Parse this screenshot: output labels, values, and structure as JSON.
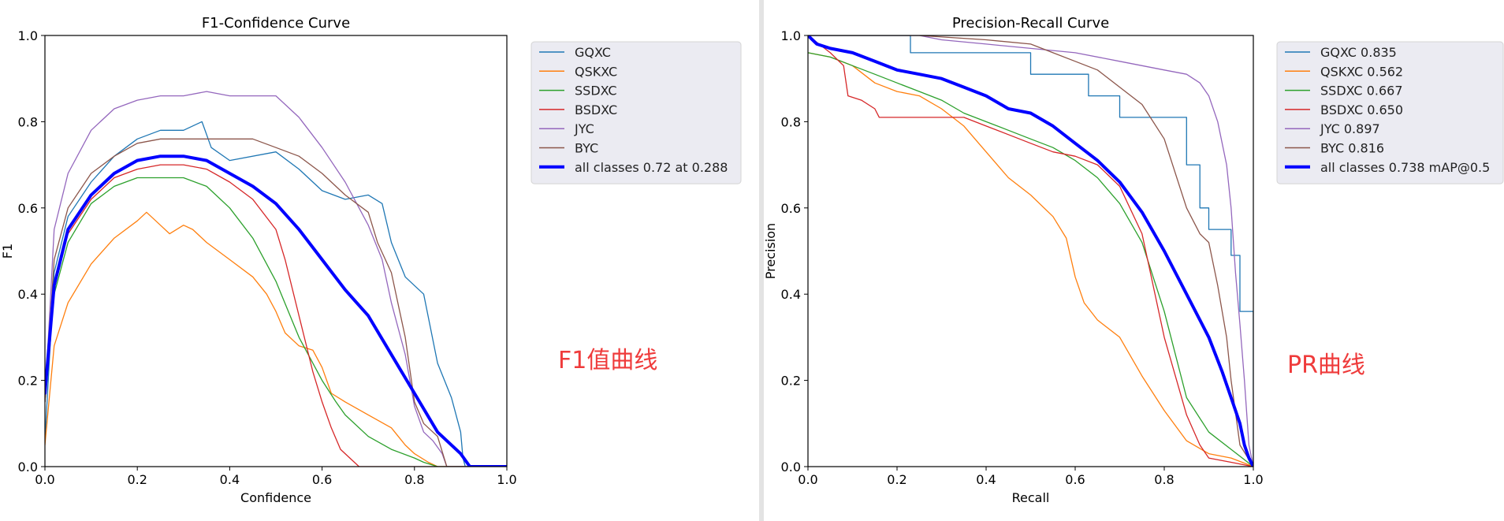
{
  "annotations": {
    "f1": "F1值曲线",
    "pr": "PR曲线"
  },
  "chart_data": [
    {
      "type": "line",
      "title": "F1-Confidence Curve",
      "xlabel": "Confidence",
      "ylabel": "F1",
      "xlim": [
        0,
        1
      ],
      "ylim": [
        0,
        1
      ],
      "xticks": [
        "0.0",
        "0.2",
        "0.4",
        "0.6",
        "0.8",
        "1.0"
      ],
      "yticks": [
        "0.0",
        "0.2",
        "0.4",
        "0.6",
        "0.8",
        "1.0"
      ],
      "grid": false,
      "legend_position": "outside-right-top",
      "series": [
        {
          "name": "GQXC",
          "color": "#1f77b4",
          "width": 1.3,
          "x": [
            0,
            0.02,
            0.05,
            0.1,
            0.15,
            0.2,
            0.25,
            0.3,
            0.34,
            0.36,
            0.4,
            0.5,
            0.55,
            0.6,
            0.65,
            0.7,
            0.73,
            0.75,
            0.78,
            0.8,
            0.82,
            0.85,
            0.88,
            0.9,
            0.905,
            0.91,
            0.95,
            1.0
          ],
          "y": [
            0.06,
            0.45,
            0.58,
            0.66,
            0.72,
            0.76,
            0.78,
            0.78,
            0.8,
            0.74,
            0.71,
            0.73,
            0.69,
            0.64,
            0.62,
            0.63,
            0.61,
            0.52,
            0.44,
            0.42,
            0.4,
            0.24,
            0.16,
            0.08,
            0.02,
            0,
            0,
            0
          ]
        },
        {
          "name": "QSKXC",
          "color": "#ff7f0e",
          "width": 1.3,
          "x": [
            0,
            0.02,
            0.05,
            0.1,
            0.15,
            0.2,
            0.22,
            0.25,
            0.27,
            0.3,
            0.32,
            0.35,
            0.4,
            0.45,
            0.48,
            0.5,
            0.52,
            0.55,
            0.58,
            0.6,
            0.62,
            0.65,
            0.7,
            0.75,
            0.78,
            0.8,
            0.83,
            0.85,
            1.0
          ],
          "y": [
            0.05,
            0.28,
            0.38,
            0.47,
            0.53,
            0.57,
            0.59,
            0.56,
            0.54,
            0.56,
            0.55,
            0.52,
            0.48,
            0.44,
            0.4,
            0.36,
            0.31,
            0.28,
            0.27,
            0.23,
            0.17,
            0.15,
            0.12,
            0.09,
            0.05,
            0.03,
            0.01,
            0,
            0
          ]
        },
        {
          "name": "SSDXC",
          "color": "#2ca02c",
          "width": 1.3,
          "x": [
            0,
            0.02,
            0.05,
            0.1,
            0.15,
            0.2,
            0.25,
            0.3,
            0.35,
            0.4,
            0.45,
            0.5,
            0.55,
            0.6,
            0.63,
            0.65,
            0.7,
            0.75,
            0.8,
            0.82,
            0.85,
            1.0
          ],
          "y": [
            0.15,
            0.4,
            0.52,
            0.61,
            0.65,
            0.67,
            0.67,
            0.67,
            0.65,
            0.6,
            0.53,
            0.43,
            0.3,
            0.2,
            0.15,
            0.12,
            0.07,
            0.04,
            0.02,
            0.01,
            0,
            0
          ]
        },
        {
          "name": "BSDXC",
          "color": "#d62728",
          "width": 1.3,
          "x": [
            0,
            0.02,
            0.05,
            0.1,
            0.15,
            0.2,
            0.25,
            0.3,
            0.35,
            0.4,
            0.45,
            0.5,
            0.52,
            0.55,
            0.58,
            0.6,
            0.62,
            0.64,
            0.66,
            0.68,
            0.7,
            1.0
          ],
          "y": [
            0.15,
            0.42,
            0.54,
            0.62,
            0.67,
            0.69,
            0.7,
            0.7,
            0.69,
            0.66,
            0.62,
            0.55,
            0.48,
            0.35,
            0.22,
            0.15,
            0.09,
            0.04,
            0.02,
            0,
            0,
            0
          ]
        },
        {
          "name": "JYC",
          "color": "#9467bd",
          "width": 1.3,
          "x": [
            0,
            0.02,
            0.05,
            0.1,
            0.15,
            0.2,
            0.25,
            0.3,
            0.35,
            0.4,
            0.45,
            0.5,
            0.55,
            0.6,
            0.65,
            0.7,
            0.73,
            0.75,
            0.78,
            0.8,
            0.82,
            0.84,
            0.86,
            0.87,
            1.0
          ],
          "y": [
            0.15,
            0.55,
            0.68,
            0.78,
            0.83,
            0.85,
            0.86,
            0.86,
            0.87,
            0.86,
            0.86,
            0.86,
            0.81,
            0.74,
            0.66,
            0.56,
            0.48,
            0.38,
            0.26,
            0.14,
            0.08,
            0.06,
            0.03,
            0,
            0
          ]
        },
        {
          "name": "BYC",
          "color": "#8c564b",
          "width": 1.3,
          "x": [
            0,
            0.02,
            0.05,
            0.1,
            0.15,
            0.2,
            0.25,
            0.3,
            0.35,
            0.4,
            0.45,
            0.5,
            0.55,
            0.6,
            0.65,
            0.7,
            0.72,
            0.75,
            0.78,
            0.8,
            0.82,
            0.85,
            0.87,
            1.0
          ],
          "y": [
            0.15,
            0.48,
            0.6,
            0.68,
            0.72,
            0.75,
            0.76,
            0.76,
            0.76,
            0.76,
            0.76,
            0.74,
            0.72,
            0.68,
            0.63,
            0.59,
            0.52,
            0.45,
            0.3,
            0.15,
            0.1,
            0.07,
            0,
            0
          ]
        },
        {
          "name": "all classes 0.72 at 0.288",
          "color": "#0000ff",
          "width": 4,
          "x": [
            0,
            0.02,
            0.05,
            0.1,
            0.15,
            0.2,
            0.25,
            0.288,
            0.3,
            0.35,
            0.4,
            0.45,
            0.5,
            0.55,
            0.6,
            0.65,
            0.7,
            0.75,
            0.8,
            0.85,
            0.9,
            0.92,
            1.0
          ],
          "y": [
            0.17,
            0.42,
            0.55,
            0.63,
            0.68,
            0.71,
            0.72,
            0.72,
            0.72,
            0.71,
            0.68,
            0.65,
            0.61,
            0.55,
            0.48,
            0.41,
            0.35,
            0.26,
            0.17,
            0.08,
            0.03,
            0,
            0
          ]
        }
      ]
    },
    {
      "type": "line",
      "title": "Precision-Recall Curve",
      "xlabel": "Recall",
      "ylabel": "Precision",
      "xlim": [
        0,
        1
      ],
      "ylim": [
        0,
        1
      ],
      "xticks": [
        "0.0",
        "0.2",
        "0.4",
        "0.6",
        "0.8",
        "1.0"
      ],
      "yticks": [
        "0.0",
        "0.2",
        "0.4",
        "0.6",
        "0.8",
        "1.0"
      ],
      "grid": false,
      "legend_position": "outside-right-top",
      "series": [
        {
          "name": "GQXC 0.835",
          "color": "#1f77b4",
          "width": 1.3,
          "step": true,
          "x": [
            0,
            0.22,
            0.23,
            0.45,
            0.5,
            0.62,
            0.63,
            0.68,
            0.7,
            0.8,
            0.85,
            0.88,
            0.9,
            0.95,
            0.97,
            0.99,
            1.0
          ],
          "y": [
            1.0,
            1.0,
            0.96,
            0.96,
            0.91,
            0.91,
            0.86,
            0.86,
            0.81,
            0.81,
            0.7,
            0.6,
            0.55,
            0.49,
            0.36,
            0.36,
            0
          ]
        },
        {
          "name": "QSKXC 0.562",
          "color": "#ff7f0e",
          "width": 1.3,
          "x": [
            0,
            0.05,
            0.1,
            0.15,
            0.2,
            0.25,
            0.3,
            0.35,
            0.4,
            0.45,
            0.5,
            0.55,
            0.58,
            0.6,
            0.62,
            0.65,
            0.7,
            0.75,
            0.8,
            0.85,
            0.9,
            0.95,
            1.0
          ],
          "y": [
            0.96,
            0.95,
            0.93,
            0.89,
            0.87,
            0.86,
            0.83,
            0.79,
            0.73,
            0.67,
            0.63,
            0.58,
            0.53,
            0.44,
            0.38,
            0.34,
            0.3,
            0.21,
            0.13,
            0.06,
            0.03,
            0.02,
            0
          ]
        },
        {
          "name": "SSDXC 0.667",
          "color": "#2ca02c",
          "width": 1.3,
          "x": [
            0,
            0.05,
            0.1,
            0.15,
            0.2,
            0.25,
            0.3,
            0.35,
            0.4,
            0.45,
            0.5,
            0.55,
            0.6,
            0.65,
            0.7,
            0.75,
            0.8,
            0.85,
            0.9,
            0.95,
            1.0
          ],
          "y": [
            0.96,
            0.95,
            0.93,
            0.91,
            0.89,
            0.87,
            0.85,
            0.82,
            0.8,
            0.78,
            0.76,
            0.74,
            0.71,
            0.67,
            0.61,
            0.52,
            0.36,
            0.16,
            0.08,
            0.04,
            0
          ]
        },
        {
          "name": "BSDXC 0.650",
          "color": "#d62728",
          "width": 1.3,
          "x": [
            0,
            0.05,
            0.08,
            0.09,
            0.12,
            0.15,
            0.16,
            0.3,
            0.35,
            0.4,
            0.45,
            0.5,
            0.55,
            0.6,
            0.65,
            0.7,
            0.75,
            0.8,
            0.85,
            0.88,
            0.9,
            0.95,
            1.0
          ],
          "y": [
            1.0,
            0.96,
            0.93,
            0.86,
            0.85,
            0.83,
            0.81,
            0.81,
            0.81,
            0.79,
            0.77,
            0.75,
            0.73,
            0.72,
            0.7,
            0.65,
            0.54,
            0.3,
            0.12,
            0.05,
            0.02,
            0.01,
            0
          ]
        },
        {
          "name": "JYC 0.897",
          "color": "#9467bd",
          "width": 1.3,
          "x": [
            0,
            0.25,
            0.3,
            0.4,
            0.5,
            0.6,
            0.7,
            0.75,
            0.8,
            0.85,
            0.88,
            0.9,
            0.92,
            0.94,
            0.95,
            0.96,
            0.97,
            0.98,
            0.99,
            1.0
          ],
          "y": [
            1.0,
            1.0,
            0.99,
            0.98,
            0.97,
            0.96,
            0.94,
            0.93,
            0.92,
            0.91,
            0.89,
            0.86,
            0.8,
            0.7,
            0.6,
            0.45,
            0.33,
            0.2,
            0.05,
            0
          ]
        },
        {
          "name": "BYC 0.816",
          "color": "#8c564b",
          "width": 1.3,
          "x": [
            0,
            0.25,
            0.4,
            0.5,
            0.55,
            0.6,
            0.65,
            0.7,
            0.75,
            0.8,
            0.85,
            0.88,
            0.9,
            0.92,
            0.94,
            0.95,
            0.97,
            1.0
          ],
          "y": [
            1.0,
            1.0,
            0.99,
            0.98,
            0.96,
            0.94,
            0.92,
            0.88,
            0.84,
            0.76,
            0.6,
            0.54,
            0.52,
            0.42,
            0.3,
            0.2,
            0.05,
            0
          ]
        },
        {
          "name": "all classes 0.738 mAP@0.5",
          "color": "#0000ff",
          "width": 4,
          "x": [
            0,
            0.02,
            0.05,
            0.1,
            0.15,
            0.2,
            0.25,
            0.3,
            0.35,
            0.4,
            0.45,
            0.5,
            0.55,
            0.6,
            0.65,
            0.7,
            0.75,
            0.8,
            0.85,
            0.9,
            0.93,
            0.95,
            0.97,
            0.98,
            0.99,
            1.0
          ],
          "y": [
            1.0,
            0.98,
            0.97,
            0.96,
            0.94,
            0.92,
            0.91,
            0.9,
            0.88,
            0.86,
            0.83,
            0.82,
            0.79,
            0.75,
            0.71,
            0.66,
            0.59,
            0.5,
            0.4,
            0.3,
            0.22,
            0.16,
            0.1,
            0.05,
            0.02,
            0
          ]
        }
      ]
    }
  ]
}
